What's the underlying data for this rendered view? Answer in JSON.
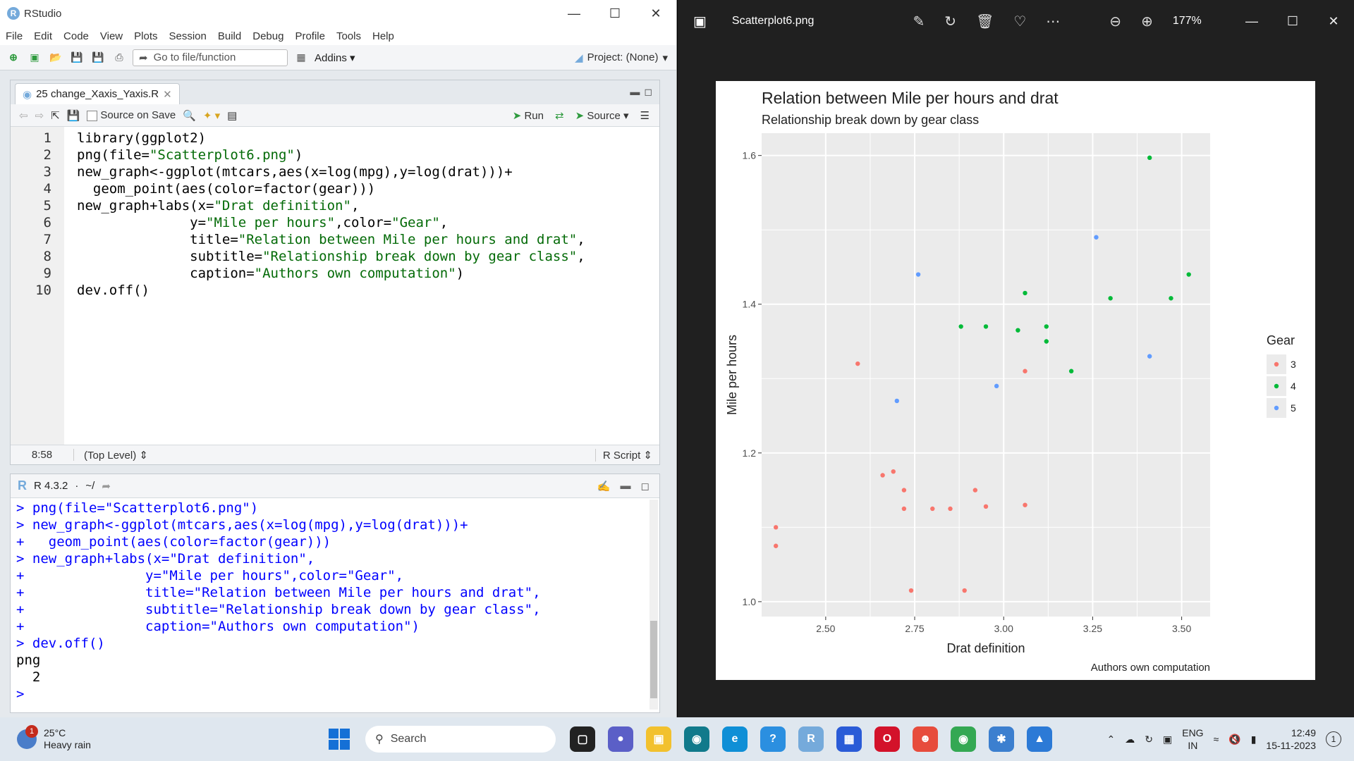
{
  "rstudio": {
    "title": "RStudio",
    "menu": [
      "File",
      "Edit",
      "Code",
      "View",
      "Plots",
      "Session",
      "Build",
      "Debug",
      "Profile",
      "Tools",
      "Help"
    ],
    "goto_placeholder": "Go to file/function",
    "addins": "Addins",
    "project": "Project: (None)",
    "editor": {
      "tab_name": "25 change_Xaxis_Yaxis.R",
      "source_on_save": "Source on Save",
      "run": "Run",
      "source": "Source",
      "line_numbers": [
        "1",
        "2",
        "3",
        "4",
        "5",
        "6",
        "7",
        "8",
        "9",
        "10"
      ],
      "cursor_pos": "8:58",
      "scope": "(Top Level)",
      "file_type": "R Script"
    },
    "console": {
      "version": "R 4.3.2",
      "wd": "~/",
      "output": [
        "png",
        "  2",
        "> "
      ]
    }
  },
  "photos": {
    "file_name": "Scatterplot6.png",
    "zoom": "177%"
  },
  "chart_data": {
    "type": "scatter",
    "title": "Relation between Mile per hours and drat",
    "subtitle": "Relationship break down by gear class",
    "caption": "Authors own computation",
    "xlabel": "Drat definition",
    "ylabel": "Mile per hours",
    "xlim": [
      2.32,
      3.58
    ],
    "ylim": [
      0.98,
      1.63
    ],
    "xticks": [
      "2.50",
      "2.75",
      "3.00",
      "3.25",
      "3.50"
    ],
    "yticks": [
      "1.0",
      "1.2",
      "1.4",
      "1.6"
    ],
    "legend_title": "Gear",
    "legend_position": "right",
    "grid": true,
    "series": [
      {
        "name": "3",
        "color": "#F8766D",
        "points": [
          [
            2.36,
            1.1
          ],
          [
            2.36,
            1.075
          ],
          [
            2.59,
            1.32
          ],
          [
            2.66,
            1.17
          ],
          [
            2.69,
            1.175
          ],
          [
            2.72,
            1.15
          ],
          [
            2.72,
            1.125
          ],
          [
            2.74,
            1.015
          ],
          [
            2.8,
            1.125
          ],
          [
            2.85,
            1.125
          ],
          [
            2.89,
            1.015
          ],
          [
            2.92,
            1.15
          ],
          [
            2.95,
            1.128
          ],
          [
            3.06,
            1.31
          ],
          [
            3.06,
            1.13
          ]
        ]
      },
      {
        "name": "4",
        "color": "#00BA38",
        "points": [
          [
            2.88,
            1.37
          ],
          [
            2.95,
            1.37
          ],
          [
            3.04,
            1.365
          ],
          [
            3.06,
            1.415
          ],
          [
            3.12,
            1.37
          ],
          [
            3.12,
            1.35
          ],
          [
            3.19,
            1.31
          ],
          [
            3.3,
            1.408
          ],
          [
            3.41,
            1.597
          ],
          [
            3.47,
            1.408
          ],
          [
            3.52,
            1.44
          ]
        ]
      },
      {
        "name": "5",
        "color": "#619CFF",
        "points": [
          [
            2.7,
            1.27
          ],
          [
            2.76,
            1.44
          ],
          [
            2.98,
            1.29
          ],
          [
            3.26,
            1.49
          ],
          [
            3.41,
            1.33
          ]
        ]
      }
    ]
  },
  "taskbar": {
    "temp": "25°C",
    "condition": "Heavy rain",
    "weather_badge": "1",
    "search": "Search",
    "lang1": "ENG",
    "lang2": "IN",
    "time": "12:49",
    "date": "15-11-2023",
    "notif_count": "1"
  }
}
